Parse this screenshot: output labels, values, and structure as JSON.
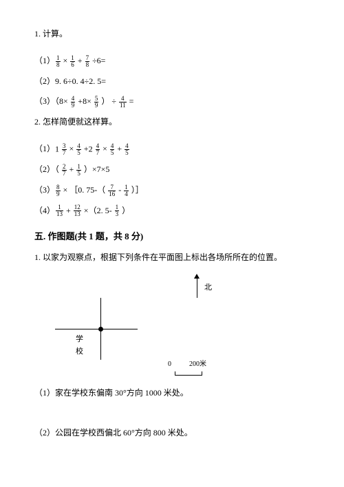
{
  "q1": {
    "title": "1. 计算。",
    "items": [
      {
        "prefix": "（1）",
        "tokens": [
          "frac:1:8",
          " × ",
          "frac:1:6",
          " + ",
          "frac:7:8",
          " ÷6="
        ]
      },
      {
        "prefix": "（2）",
        "tokens": [
          "9. 6÷0. 4÷2. 5="
        ]
      },
      {
        "prefix": "（3）",
        "tokens": [
          "（8× ",
          "frac:4:9",
          " +8× ",
          "frac:5:9",
          " ） ÷ ",
          "frac:4:11",
          " ="
        ]
      }
    ]
  },
  "q2": {
    "title": "2. 怎样简便就这样算。",
    "items": [
      {
        "prefix": "（1）",
        "tokens": [
          "mixed:1:3:7",
          " × ",
          "frac:4:5",
          " +",
          "mixed:2:4:7",
          " × ",
          "frac:4:5",
          " + ",
          "frac:4:5"
        ]
      },
      {
        "prefix": "（2）",
        "tokens": [
          "（ ",
          "frac:2:7",
          " + ",
          "frac:1:5",
          " ）×7×5"
        ]
      },
      {
        "prefix": "（3）",
        "tokens": [
          "frac:8:9",
          " × ［0. 75-（ ",
          "frac:7:16",
          " - ",
          "frac:1:4",
          " ）］"
        ]
      },
      {
        "prefix": "（4）",
        "tokens": [
          "frac:1:13",
          " + ",
          "frac:12:13",
          " ×（2. 5- ",
          "frac:1:3",
          " ）"
        ]
      }
    ]
  },
  "section5": {
    "heading": "五. 作图题(共 1 题，共 8 分)",
    "prompt": "1. 以家为观察点，根据下列条件在平面图上标出各场所所在的位置。",
    "north_label": "北",
    "school_label": "学校",
    "scale": {
      "left": "0",
      "right": "200米"
    },
    "subs": [
      "（1）家在学校东偏南 30°方向 1000 米处。",
      "（2）公园在学校西偏北 60°方向 800 米处。"
    ]
  }
}
